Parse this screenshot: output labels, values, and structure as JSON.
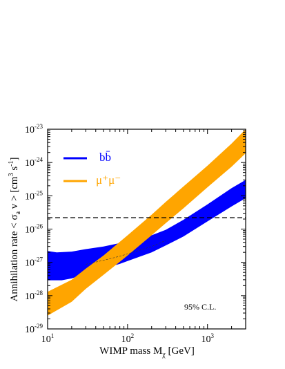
{
  "chart_data": {
    "type": "area",
    "xlabel": "WIMP mass M",
    "xlabel_sub": "χ",
    "xlabel_unit": " [GeV]",
    "ylabel": "Annihilation rate  < σ",
    "ylabel_sub": "a",
    "ylabel_mid": " v > [cm",
    "ylabel_sup1": "3",
    "ylabel_mid2": " s",
    "ylabel_sup2": "-1",
    "ylabel_end": "]",
    "x_scale": "log",
    "y_scale": "log",
    "xlim": [
      10,
      3000
    ],
    "ylim": [
      1e-29,
      1e-23
    ],
    "x_ticks": [
      {
        "value": 10,
        "base": "10",
        "exp": "1"
      },
      {
        "value": 100,
        "base": "10",
        "exp": "2"
      },
      {
        "value": 1000,
        "base": "10",
        "exp": "3"
      }
    ],
    "y_ticks": [
      {
        "value": 1e-29,
        "base": "10",
        "exp": "-29"
      },
      {
        "value": 1e-28,
        "base": "10",
        "exp": "-28"
      },
      {
        "value": 1e-27,
        "base": "10",
        "exp": "-27"
      },
      {
        "value": 1e-26,
        "base": "10",
        "exp": "-26"
      },
      {
        "value": 1e-25,
        "base": "10",
        "exp": "-25"
      },
      {
        "value": 1e-24,
        "base": "10",
        "exp": "-24"
      },
      {
        "value": 1e-23,
        "base": "10",
        "exp": "-23"
      }
    ],
    "annotation": "95% C.L.",
    "reference_line": {
      "y": 2.2e-26,
      "style": "dashed",
      "color": "#000000"
    },
    "legend_placement": "top-left",
    "series": [
      {
        "name": "bb̄",
        "color": "#0000ff",
        "upper": [
          [
            10,
            2.2e-27
          ],
          [
            13,
            2e-27
          ],
          [
            20,
            2.1e-27
          ],
          [
            30,
            2.5e-27
          ],
          [
            50,
            3e-27
          ],
          [
            80,
            3.8e-27
          ],
          [
            100,
            4.3e-27
          ],
          [
            200,
            6.5e-27
          ],
          [
            300,
            9.5e-27
          ],
          [
            500,
            1.9e-26
          ],
          [
            1000,
            5.5e-26
          ],
          [
            2000,
            1.7e-25
          ],
          [
            3000,
            3e-25
          ]
        ],
        "lower": [
          [
            10,
            2.9e-28
          ],
          [
            15,
            2.9e-28
          ],
          [
            20,
            3.3e-28
          ],
          [
            30,
            4.5e-28
          ],
          [
            50,
            6.5e-28
          ],
          [
            80,
            9e-28
          ],
          [
            100,
            1.1e-27
          ],
          [
            200,
            2e-27
          ],
          [
            300,
            3.2e-27
          ],
          [
            500,
            6e-27
          ],
          [
            1000,
            1.7e-26
          ],
          [
            2000,
            4.8e-26
          ],
          [
            3000,
            8.5e-26
          ]
        ]
      },
      {
        "name": "μ⁺μ⁻",
        "color": "#ffa500",
        "upper": [
          [
            10,
            1.3e-28
          ],
          [
            20,
            3e-28
          ],
          [
            30,
            6.5e-28
          ],
          [
            50,
            1.6e-27
          ],
          [
            100,
            6.5e-27
          ],
          [
            200,
            2.7e-26
          ],
          [
            300,
            6.5e-26
          ],
          [
            500,
            1.9e-25
          ],
          [
            1000,
            8e-25
          ],
          [
            2000,
            3.7e-24
          ],
          [
            3000,
            1e-23
          ]
        ],
        "lower": [
          [
            10,
            2.5e-29
          ],
          [
            20,
            6.5e-29
          ],
          [
            30,
            1.6e-28
          ],
          [
            50,
            4.2e-28
          ],
          [
            100,
            1.6e-27
          ],
          [
            200,
            6.5e-27
          ],
          [
            300,
            1.5e-26
          ],
          [
            500,
            4.2e-26
          ],
          [
            1000,
            1.8e-25
          ],
          [
            2000,
            7.5e-25
          ],
          [
            3000,
            1.9e-24
          ]
        ]
      }
    ]
  }
}
